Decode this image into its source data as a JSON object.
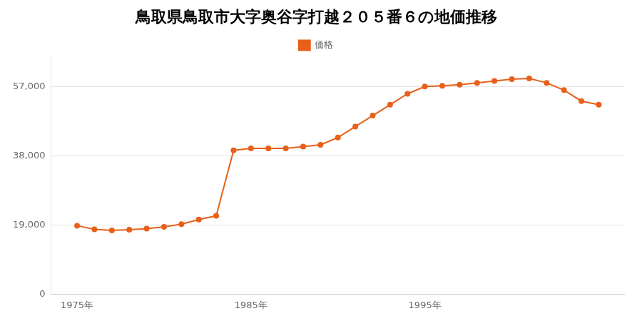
{
  "chart_data": {
    "type": "line",
    "title": "鳥取県鳥取市大字奥谷字打越２０５番６の地価推移",
    "x": [
      1975,
      1976,
      1977,
      1978,
      1979,
      1980,
      1981,
      1982,
      1983,
      1984,
      1985,
      1986,
      1987,
      1988,
      1989,
      1990,
      1991,
      1992,
      1993,
      1994,
      1995,
      1996,
      1997,
      1998,
      1999,
      2000,
      2001,
      2002,
      2003,
      2004,
      2005
    ],
    "series": [
      {
        "name": "価格",
        "color": "#e8601a",
        "marker": "circle",
        "values": [
          18800,
          17800,
          17500,
          17700,
          18000,
          18500,
          19200,
          20500,
          21500,
          39500,
          40000,
          40000,
          40000,
          40500,
          41000,
          43000,
          46000,
          49000,
          52000,
          55000,
          57000,
          57200,
          57500,
          58000,
          58500,
          59000,
          59200,
          58000,
          56000,
          53000,
          52000
        ]
      }
    ],
    "xlim": [
      1973.5,
      2006.5
    ],
    "xticks": [
      {
        "value": 1975,
        "label": "1975年"
      },
      {
        "value": 1985,
        "label": "1985年"
      },
      {
        "value": 1995,
        "label": "1995年"
      }
    ],
    "ylim": [
      0,
      65000
    ],
    "yticks": [
      0,
      {
        "value": 19000,
        "label": "19,000"
      },
      {
        "value": 38000,
        "label": "38,000"
      },
      {
        "value": 57000,
        "label": "57,000"
      }
    ],
    "grid": "y",
    "legend": "top"
  }
}
